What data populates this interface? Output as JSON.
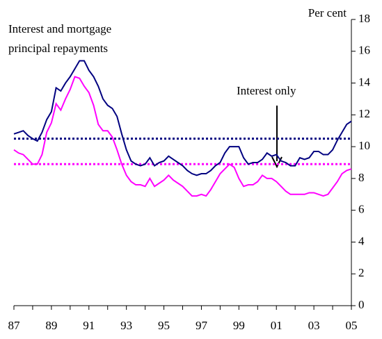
{
  "chart_data": {
    "type": "line",
    "unit_label": "Per cent",
    "annotations": [
      "Interest and mortgage",
      "principal repayments",
      "Interest only"
    ],
    "x": [
      1987,
      1987.25,
      1987.5,
      1987.75,
      1988,
      1988.25,
      1988.5,
      1988.75,
      1989,
      1989.25,
      1989.5,
      1989.75,
      1990,
      1990.25,
      1990.5,
      1990.75,
      1991,
      1991.25,
      1991.5,
      1991.75,
      1992,
      1992.25,
      1992.5,
      1992.75,
      1993,
      1993.25,
      1993.5,
      1993.75,
      1994,
      1994.25,
      1994.5,
      1994.75,
      1995,
      1995.25,
      1995.5,
      1995.75,
      1996,
      1996.25,
      1996.5,
      1996.75,
      1997,
      1997.25,
      1997.5,
      1997.75,
      1998,
      1998.25,
      1998.5,
      1998.75,
      1999,
      1999.25,
      1999.5,
      1999.75,
      2000,
      2000.25,
      2000.5,
      2000.75,
      2001,
      2001.25,
      2001.5,
      2001.75,
      2002,
      2002.25,
      2002.5,
      2002.75,
      2003,
      2003.25,
      2003.5,
      2003.75,
      2004,
      2004.25,
      2004.5,
      2004.75,
      2005
    ],
    "series": [
      {
        "color": "#000080",
        "values": [
          10.8,
          10.9,
          11.0,
          10.7,
          10.5,
          10.35,
          10.9,
          11.7,
          12.2,
          13.7,
          13.5,
          14.0,
          14.4,
          14.9,
          15.4,
          15.4,
          14.8,
          14.4,
          13.8,
          13.0,
          12.6,
          12.4,
          11.9,
          10.8,
          9.8,
          9.1,
          8.9,
          8.8,
          8.9,
          9.3,
          8.8,
          9.0,
          9.1,
          9.4,
          9.2,
          9.0,
          8.8,
          8.5,
          8.3,
          8.2,
          8.3,
          8.3,
          8.5,
          8.8,
          9.0,
          9.6,
          10.0,
          10.0,
          10.0,
          9.3,
          8.9,
          9.0,
          9.0,
          9.2,
          9.6,
          9.4,
          9.5,
          9.1,
          9.0,
          8.8,
          8.8,
          9.3,
          9.2,
          9.3,
          9.7,
          9.7,
          9.5,
          9.5,
          9.8,
          10.4,
          10.9,
          11.4,
          11.6
        ]
      },
      {
        "color": "#ff00ff",
        "values": [
          9.8,
          9.6,
          9.5,
          9.2,
          8.9,
          8.9,
          9.5,
          10.9,
          11.5,
          12.7,
          12.3,
          13.0,
          13.6,
          14.4,
          14.3,
          13.8,
          13.4,
          12.6,
          11.4,
          11.0,
          11.0,
          10.6,
          9.8,
          8.9,
          8.2,
          7.8,
          7.6,
          7.6,
          7.5,
          8.0,
          7.5,
          7.7,
          7.9,
          8.2,
          7.9,
          7.7,
          7.5,
          7.2,
          6.9,
          6.9,
          7.0,
          6.9,
          7.3,
          7.8,
          8.3,
          8.6,
          8.9,
          8.7,
          8.0,
          7.5,
          7.6,
          7.6,
          7.8,
          8.2,
          8.0,
          8.0,
          7.8,
          7.5,
          7.2,
          7.0,
          7.0,
          7.0,
          7.0,
          7.1,
          7.1,
          7.0,
          6.9,
          7.0,
          7.4,
          7.8,
          8.3,
          8.5,
          8.6
        ]
      }
    ],
    "reference_lines": [
      {
        "value": 10.5,
        "color": "#000080"
      },
      {
        "value": 8.9,
        "color": "#ff00ff"
      }
    ],
    "xlim": [
      1987,
      2005
    ],
    "xticks": [
      {
        "value": 1987,
        "label": "87"
      },
      {
        "value": 1989,
        "label": "89"
      },
      {
        "value": 1991,
        "label": "91"
      },
      {
        "value": 1993,
        "label": "93"
      },
      {
        "value": 1995,
        "label": "95"
      },
      {
        "value": 1997,
        "label": "97"
      },
      {
        "value": 1999,
        "label": "99"
      },
      {
        "value": 2001,
        "label": "01"
      },
      {
        "value": 2003,
        "label": "03"
      },
      {
        "value": 2005,
        "label": "05"
      }
    ],
    "xminorticks": [
      1988,
      1990,
      1992,
      1994,
      1996,
      1998,
      2000,
      2002,
      2004
    ],
    "ylim": [
      0,
      18
    ],
    "yticks": [
      0,
      2,
      4,
      6,
      8,
      10,
      12,
      14,
      16,
      18
    ],
    "grid": false
  }
}
